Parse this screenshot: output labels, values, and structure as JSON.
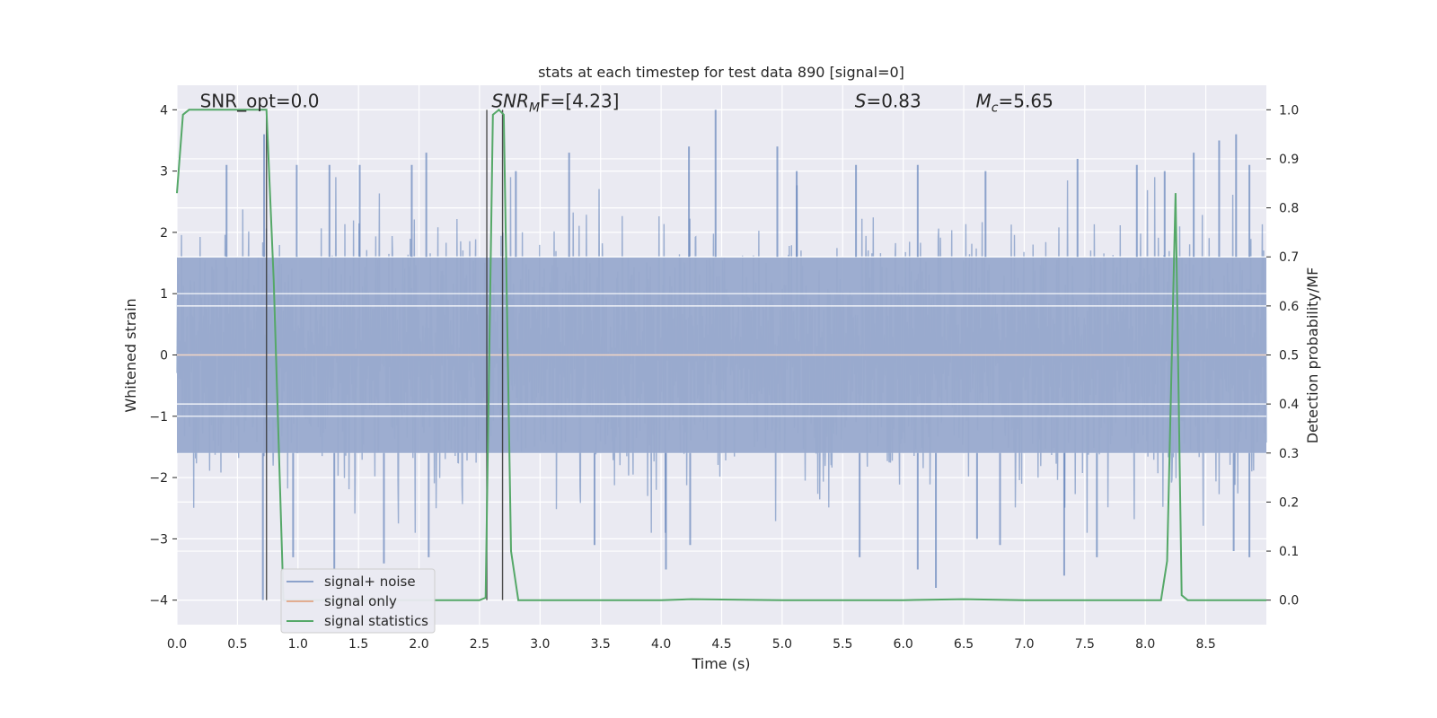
{
  "chart_data": {
    "type": "line",
    "title": "stats at each timestep for test data 890 [signal=0]",
    "xlabel": "Time (s)",
    "ylabel": "Whitened strain",
    "y2label": "Detection probability/MF",
    "xlim": [
      0.0,
      9.0
    ],
    "ylim": [
      -4.4,
      4.4
    ],
    "y2lim": [
      -0.05,
      1.05
    ],
    "x_ticks": [
      "0.0",
      "0.5",
      "1.0",
      "1.5",
      "2.0",
      "2.5",
      "3.0",
      "3.5",
      "4.0",
      "4.5",
      "5.0",
      "5.5",
      "6.0",
      "6.5",
      "7.0",
      "7.5",
      "8.0",
      "8.5"
    ],
    "y_ticks": [
      "−4",
      "−3",
      "−2",
      "−1",
      "0",
      "1",
      "2",
      "3",
      "4"
    ],
    "y2_ticks": [
      "0.0",
      "0.1",
      "0.2",
      "0.3",
      "0.4",
      "0.5",
      "0.6",
      "0.7",
      "0.8",
      "0.9",
      "1.0"
    ],
    "annotations": [
      {
        "text": "SNR_opt=0.0",
        "x": 0.19,
        "y": 4.1
      },
      {
        "text": "SNR",
        "sub": "M",
        "suffix": "F=[4.23]",
        "italic_prefix": true,
        "x": 2.6,
        "y": 4.1
      },
      {
        "text": "S",
        "suffix": "=0.83",
        "italic_prefix": true,
        "x": 5.6,
        "y": 4.1
      },
      {
        "text": "M",
        "sub": "c",
        "suffix": "=5.65",
        "italic_prefix": true,
        "x": 6.6,
        "y": 4.1
      }
    ],
    "vlines": [
      {
        "x": 0.74,
        "ymin": -4.0,
        "ymax": 4.0
      },
      {
        "x": 2.56,
        "ymin": -4.0,
        "ymax": 4.0
      },
      {
        "x": 2.69,
        "ymin": -4.0,
        "ymax": 4.0
      }
    ],
    "series": [
      {
        "name": "signal+ noise",
        "color": "#4c72b0",
        "kind": "noise",
        "core_band": [
          -1.6,
          1.6
        ],
        "spikes": [
          {
            "x": 0.41,
            "y": 3.1
          },
          {
            "x": 0.72,
            "y": 3.6
          },
          {
            "x": 0.99,
            "y": 3.1
          },
          {
            "x": 1.26,
            "y": 3.1
          },
          {
            "x": 1.51,
            "y": 3.1
          },
          {
            "x": 1.94,
            "y": 3.1
          },
          {
            "x": 2.06,
            "y": 3.3
          },
          {
            "x": 2.8,
            "y": 3.0
          },
          {
            "x": 3.24,
            "y": 3.3
          },
          {
            "x": 4.23,
            "y": 3.4
          },
          {
            "x": 4.45,
            "y": 4.0
          },
          {
            "x": 4.96,
            "y": 3.4
          },
          {
            "x": 5.12,
            "y": 3.0
          },
          {
            "x": 5.61,
            "y": 3.1
          },
          {
            "x": 6.12,
            "y": 3.1
          },
          {
            "x": 6.68,
            "y": 3.0
          },
          {
            "x": 7.44,
            "y": 3.2
          },
          {
            "x": 7.93,
            "y": 3.1
          },
          {
            "x": 8.16,
            "y": 3.0
          },
          {
            "x": 8.4,
            "y": 3.3
          },
          {
            "x": 8.61,
            "y": 3.5
          },
          {
            "x": 8.75,
            "y": 3.6
          },
          {
            "x": 8.86,
            "y": 3.1
          },
          {
            "x": 0.71,
            "y": -4.0
          },
          {
            "x": 0.96,
            "y": -3.3
          },
          {
            "x": 1.3,
            "y": -3.5
          },
          {
            "x": 1.71,
            "y": -3.4
          },
          {
            "x": 2.08,
            "y": -3.3
          },
          {
            "x": 3.45,
            "y": -3.1
          },
          {
            "x": 4.04,
            "y": -3.5
          },
          {
            "x": 4.24,
            "y": -3.1
          },
          {
            "x": 5.64,
            "y": -3.3
          },
          {
            "x": 6.12,
            "y": -3.5
          },
          {
            "x": 6.27,
            "y": -3.8
          },
          {
            "x": 6.61,
            "y": -3.0
          },
          {
            "x": 6.8,
            "y": -3.1
          },
          {
            "x": 7.33,
            "y": -3.6
          },
          {
            "x": 7.6,
            "y": -3.3
          },
          {
            "x": 8.73,
            "y": -3.2
          },
          {
            "x": 8.86,
            "y": -3.3
          }
        ]
      },
      {
        "name": "signal only",
        "color": "#dd8452",
        "kind": "flat",
        "value": 0.0
      },
      {
        "name": "signal statistics",
        "color": "#55a868",
        "kind": "line",
        "axis": "right",
        "x": [
          0.0,
          0.05,
          0.1,
          0.2,
          0.3,
          0.4,
          0.5,
          0.6,
          0.7,
          0.74,
          0.8,
          0.88,
          1.0,
          2.0,
          2.5,
          2.55,
          2.61,
          2.66,
          2.7,
          2.76,
          2.82,
          3.0,
          4.0,
          4.25,
          5.0,
          6.0,
          6.5,
          7.0,
          8.0,
          8.13,
          8.18,
          8.25,
          8.3,
          8.35,
          9.0
        ],
        "y": [
          0.83,
          0.99,
          1.0,
          1.0,
          1.0,
          1.0,
          1.0,
          1.0,
          1.0,
          1.0,
          0.65,
          0.0,
          0.0,
          0.0,
          0.0,
          0.005,
          0.99,
          1.0,
          0.99,
          0.1,
          0.0,
          0.0,
          0.0,
          0.002,
          0.0,
          0.0,
          0.002,
          0.0,
          0.0,
          0.0,
          0.08,
          0.83,
          0.01,
          0.0,
          0.0
        ]
      }
    ],
    "legend_placement": "lower-left",
    "grid": true
  }
}
